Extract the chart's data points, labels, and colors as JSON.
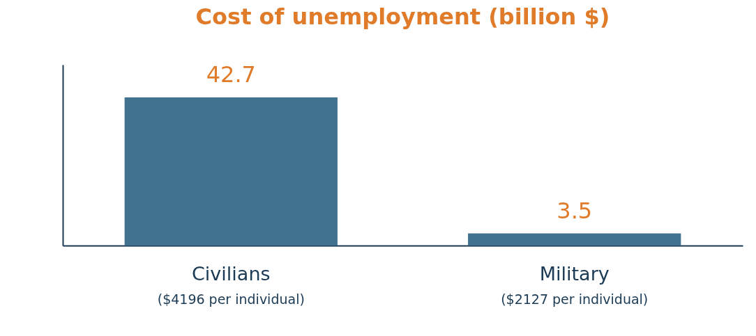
{
  "chart_data": {
    "type": "bar",
    "title": "Cost of unemployment (billion $)",
    "categories": [
      "Civilians",
      "Military"
    ],
    "values": [
      42.7,
      3.5
    ],
    "color": "#41728f",
    "data_labels": true,
    "grid": false,
    "annotations": [
      "($4196 per individual)",
      "($2127 per individual)"
    ]
  }
}
